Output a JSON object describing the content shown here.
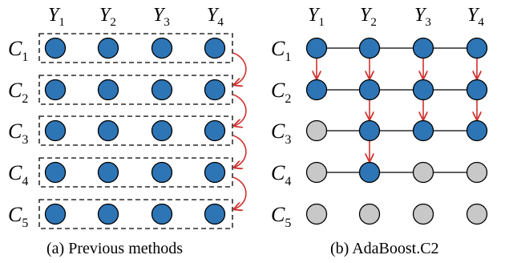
{
  "left_panel": {
    "columns": [
      {
        "base": "Y",
        "sub": "1"
      },
      {
        "base": "Y",
        "sub": "2"
      },
      {
        "base": "Y",
        "sub": "3"
      },
      {
        "base": "Y",
        "sub": "4"
      }
    ],
    "rows": [
      {
        "base": "C",
        "sub": "1"
      },
      {
        "base": "C",
        "sub": "2"
      },
      {
        "base": "C",
        "sub": "3"
      },
      {
        "base": "C",
        "sub": "4"
      },
      {
        "base": "C",
        "sub": "5"
      }
    ],
    "caption": "(a)  Previous methods"
  },
  "right_panel": {
    "columns": [
      {
        "base": "Y",
        "sub": "1"
      },
      {
        "base": "Y",
        "sub": "2"
      },
      {
        "base": "Y",
        "sub": "3"
      },
      {
        "base": "Y",
        "sub": "4"
      }
    ],
    "rows": [
      {
        "base": "C",
        "sub": "1"
      },
      {
        "base": "C",
        "sub": "2"
      },
      {
        "base": "C",
        "sub": "3"
      },
      {
        "base": "C",
        "sub": "4"
      },
      {
        "base": "C",
        "sub": "5"
      }
    ],
    "caption": "(b)  AdaBoost.C2"
  },
  "colors": {
    "active_node": "#2e75b6",
    "inactive_node": "#c8c8c8",
    "arrow": "#d0312d",
    "edge": "#000000"
  }
}
